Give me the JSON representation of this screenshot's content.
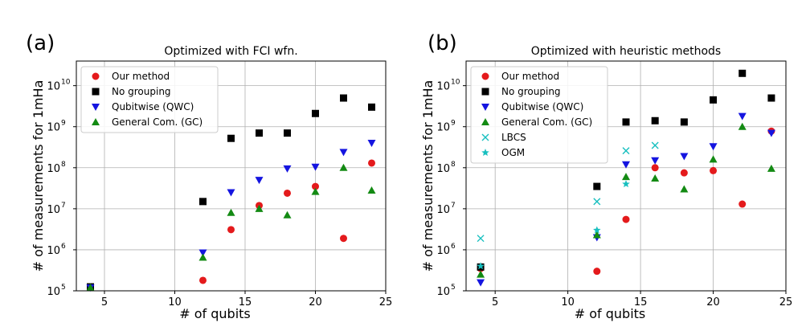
{
  "chart_data": [
    {
      "type": "scatter",
      "panel_label": "(a)",
      "title": "Optimized with FCI wfn.",
      "xlabel": "# of qubits",
      "ylabel": "# of measurements for 1mHa",
      "xlim": [
        3,
        25
      ],
      "ylim_log10": [
        5,
        10.6
      ],
      "yscale": "log",
      "x_ticks": [
        5,
        10,
        15,
        20,
        25
      ],
      "y_ticks_exp": [
        5,
        6,
        7,
        8,
        9,
        10
      ],
      "y_tick_base": "10",
      "grid": true,
      "legend_position": "top-left",
      "series": [
        {
          "name": "Our method",
          "marker": "circle",
          "color": "#e41a1c",
          "x": [
            4,
            12,
            14,
            16,
            18,
            20,
            22,
            24
          ],
          "y": [
            120000,
            180000,
            3100000,
            12000000,
            24000000,
            35000000,
            1900000,
            130000000
          ]
        },
        {
          "name": "No grouping",
          "marker": "square",
          "color": "#000000",
          "x": [
            4,
            12,
            14,
            16,
            18,
            20,
            22,
            24
          ],
          "y": [
            125000,
            15000000,
            520000000,
            700000000,
            700000000,
            2100000000,
            5000000000,
            3000000000
          ]
        },
        {
          "name": "Qubitwise (QWC)",
          "marker": "triangle-down",
          "color": "#1515e0",
          "x": [
            4,
            12,
            14,
            16,
            18,
            20,
            22,
            24
          ],
          "y": [
            120000,
            850000,
            25000000,
            50000000,
            95000000,
            105000000,
            240000000,
            400000000
          ]
        },
        {
          "name": "General Com. (GC)",
          "marker": "triangle-up",
          "color": "#138a13",
          "x": [
            4,
            12,
            14,
            16,
            18,
            20,
            22,
            24
          ],
          "y": [
            120000,
            650000,
            8000000,
            10000000,
            7000000,
            26000000,
            100000000,
            28000000
          ]
        }
      ]
    },
    {
      "type": "scatter",
      "panel_label": "(b)",
      "title": "Optimized with heuristic methods",
      "xlabel": "# of qubits",
      "ylabel": "# of measurements for 1mHa",
      "xlim": [
        3,
        25
      ],
      "ylim_log10": [
        5,
        10.6
      ],
      "yscale": "log",
      "x_ticks": [
        5,
        10,
        15,
        20,
        25
      ],
      "y_ticks_exp": [
        5,
        6,
        7,
        8,
        9,
        10
      ],
      "y_tick_base": "10",
      "grid": true,
      "legend_position": "top-left",
      "series": [
        {
          "name": "Our method",
          "marker": "circle",
          "color": "#e41a1c",
          "x": [
            4,
            12,
            14,
            16,
            18,
            20,
            22,
            24
          ],
          "y": [
            350000,
            300000,
            5500000,
            100000000,
            75000000,
            85000000,
            13000000,
            780000000
          ]
        },
        {
          "name": "No grouping",
          "marker": "square",
          "color": "#000000",
          "x": [
            4,
            12,
            14,
            16,
            18,
            20,
            22,
            24
          ],
          "y": [
            380000,
            35000000,
            1300000000,
            1400000000,
            1300000000,
            4500000000,
            20000000000,
            5000000000
          ]
        },
        {
          "name": "Qubitwise (QWC)",
          "marker": "triangle-down",
          "color": "#1515e0",
          "x": [
            4,
            12,
            14,
            16,
            18,
            20,
            22,
            24
          ],
          "y": [
            160000,
            2000000,
            120000000,
            150000000,
            190000000,
            330000000,
            1800000000,
            700000000
          ]
        },
        {
          "name": "General Com. (GC)",
          "marker": "triangle-up",
          "color": "#138a13",
          "x": [
            4,
            12,
            14,
            16,
            18,
            20,
            22,
            24
          ],
          "y": [
            250000,
            2300000,
            60000000,
            55000000,
            30000000,
            160000000,
            1000000000,
            95000000
          ]
        },
        {
          "name": "LBCS",
          "marker": "x",
          "color": "#17bfbf",
          "x": [
            4,
            12,
            14,
            16
          ],
          "y": [
            1900000,
            15000000,
            260000000,
            350000000
          ]
        },
        {
          "name": "OGM",
          "marker": "star",
          "color": "#17bfbf",
          "x": [
            4,
            12,
            14
          ],
          "y": [
            400000,
            3000000,
            40000000
          ]
        }
      ]
    }
  ]
}
